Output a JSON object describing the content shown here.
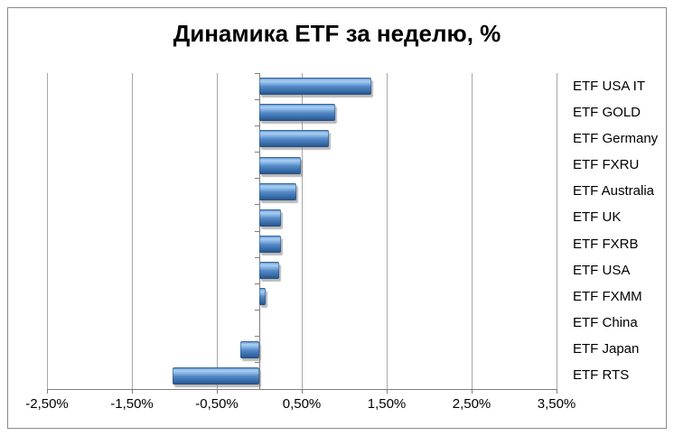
{
  "title": "Динамика ETF за неделю, %",
  "chart_data": {
    "type": "bar",
    "orientation": "horizontal",
    "title": "Динамика ETF за неделю, %",
    "categories": [
      "ETF USA IT",
      "ETF GOLD",
      "ETF Germany",
      "ETF FXRU",
      "ETF Australia",
      "ETF UK",
      "ETF FXRB",
      "ETF USA",
      "ETF FXMM",
      "ETF China",
      "ETF Japan",
      "ETF RTS"
    ],
    "values": [
      1.32,
      0.89,
      0.82,
      0.49,
      0.44,
      0.25,
      0.25,
      0.23,
      0.07,
      0.0,
      -0.22,
      -1.02
    ],
    "x_ticks": [
      "-2,50%",
      "-1,50%",
      "-0,50%",
      "0,50%",
      "1,50%",
      "2,50%",
      "3,50%"
    ],
    "x_tick_values": [
      -2.5,
      -1.5,
      -0.5,
      0.5,
      1.5,
      2.5,
      3.5
    ],
    "xlim": [
      -2.5,
      3.5
    ],
    "grid": true,
    "legend": false,
    "bar_color": "#4f86c2",
    "gridline_color": "#a6a6a6",
    "axis_color": "#7f7f7f",
    "label_side": "right"
  }
}
